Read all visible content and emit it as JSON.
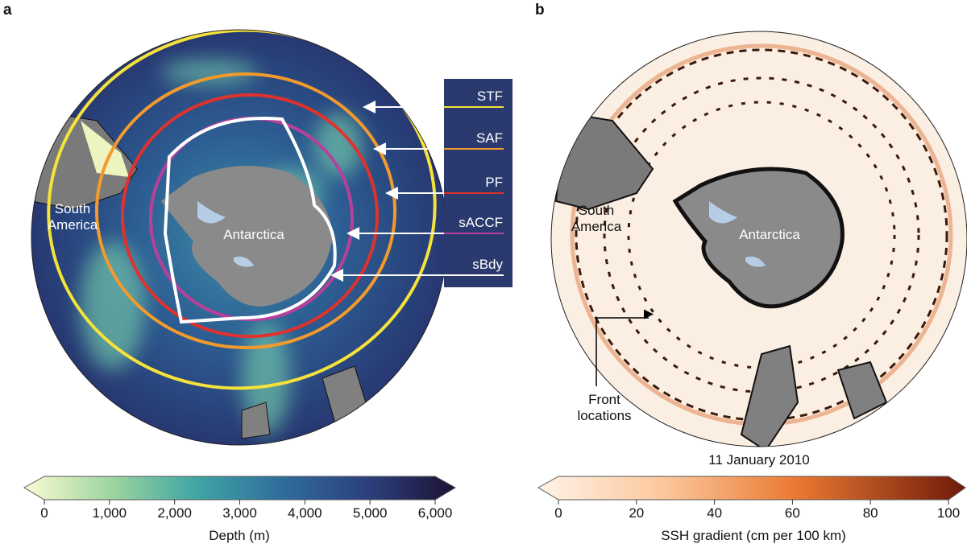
{
  "panels": [
    {
      "label": "a",
      "places": [
        "South America",
        "Antarctica"
      ],
      "fronts": [
        "STF",
        "SAF",
        "PF",
        "sACCF",
        "sBdy"
      ],
      "colorbar": {
        "ticks": [
          "0",
          "1,000",
          "2,000",
          "3,000",
          "4,000",
          "5,000",
          "6,000"
        ],
        "title": "Depth (m)"
      }
    },
    {
      "label": "b",
      "places": [
        "South America",
        "Antarctica"
      ],
      "annotation": "Front locations",
      "date": "11 January 2010",
      "colorbar": {
        "ticks": [
          "0",
          "20",
          "40",
          "60",
          "80",
          "100"
        ],
        "title": "SSH gradient (cm per 100 km)"
      }
    }
  ]
}
